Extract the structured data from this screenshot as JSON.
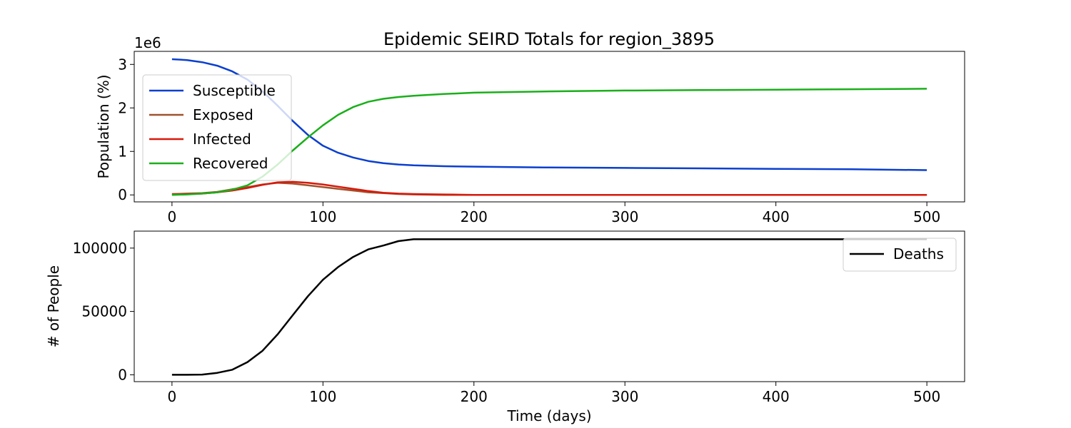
{
  "figure": {
    "title": "Epidemic SEIRD Totals for region_3895"
  },
  "chart_data": [
    {
      "type": "line",
      "title": "Epidemic SEIRD Totals for region_3895",
      "xlabel": "",
      "ylabel": "Population (%)",
      "y_offset_label": "1e6",
      "xlim": [
        -25,
        525
      ],
      "ylim": [
        -0.16,
        3.3
      ],
      "xticks": [
        0,
        100,
        200,
        300,
        400,
        500
      ],
      "yticks": [
        0,
        1,
        2,
        3
      ],
      "grid": false,
      "legend": "upper-left",
      "series": [
        {
          "name": "Susceptible",
          "color": "#0b3fcf",
          "x": [
            0,
            10,
            20,
            30,
            40,
            50,
            60,
            70,
            80,
            90,
            100,
            110,
            120,
            130,
            140,
            150,
            160,
            180,
            200,
            250,
            300,
            350,
            400,
            450,
            500
          ],
          "y": [
            3.12,
            3.1,
            3.05,
            2.97,
            2.84,
            2.65,
            2.38,
            2.05,
            1.7,
            1.38,
            1.13,
            0.97,
            0.86,
            0.78,
            0.73,
            0.7,
            0.68,
            0.66,
            0.65,
            0.63,
            0.62,
            0.61,
            0.6,
            0.59,
            0.57
          ]
        },
        {
          "name": "Exposed",
          "color": "#a0522d",
          "x": [
            0,
            10,
            20,
            30,
            40,
            50,
            60,
            70,
            80,
            90,
            100,
            110,
            120,
            130,
            140,
            150,
            160,
            180,
            200,
            250,
            300,
            350,
            400,
            450,
            500
          ],
          "y": [
            0.02,
            0.03,
            0.04,
            0.07,
            0.13,
            0.18,
            0.24,
            0.28,
            0.26,
            0.22,
            0.18,
            0.14,
            0.1,
            0.06,
            0.04,
            0.02,
            0.01,
            0.0,
            0.0,
            0.0,
            0.0,
            0.0,
            0.0,
            0.0,
            0.0
          ]
        },
        {
          "name": "Infected",
          "color": "#d7190b",
          "x": [
            0,
            10,
            20,
            30,
            40,
            50,
            60,
            70,
            80,
            90,
            100,
            110,
            120,
            130,
            140,
            150,
            160,
            180,
            200,
            250,
            300,
            350,
            400,
            450,
            500
          ],
          "y": [
            0.01,
            0.02,
            0.03,
            0.06,
            0.1,
            0.16,
            0.23,
            0.29,
            0.3,
            0.28,
            0.24,
            0.19,
            0.14,
            0.09,
            0.05,
            0.03,
            0.02,
            0.01,
            0.0,
            0.0,
            0.0,
            0.0,
            0.0,
            0.0,
            0.0
          ]
        },
        {
          "name": "Recovered",
          "color": "#1aaf1a",
          "x": [
            0,
            10,
            20,
            30,
            40,
            50,
            60,
            70,
            80,
            90,
            100,
            110,
            120,
            130,
            140,
            150,
            160,
            180,
            200,
            250,
            300,
            350,
            400,
            450,
            500
          ],
          "y": [
            0.0,
            0.01,
            0.03,
            0.06,
            0.12,
            0.22,
            0.42,
            0.7,
            1.02,
            1.32,
            1.6,
            1.84,
            2.02,
            2.14,
            2.21,
            2.25,
            2.28,
            2.32,
            2.35,
            2.38,
            2.4,
            2.41,
            2.42,
            2.43,
            2.44
          ]
        }
      ]
    },
    {
      "type": "line",
      "title": "",
      "xlabel": "Time (days)",
      "ylabel": "# of People",
      "xlim": [
        -25,
        525
      ],
      "ylim": [
        -5400,
        113400
      ],
      "xticks": [
        0,
        100,
        200,
        300,
        400,
        500
      ],
      "yticks": [
        0,
        50000,
        100000
      ],
      "grid": false,
      "legend": "upper-right",
      "series": [
        {
          "name": "Deaths",
          "color": "#000000",
          "x": [
            0,
            10,
            20,
            30,
            40,
            50,
            60,
            70,
            80,
            90,
            100,
            110,
            120,
            130,
            140,
            150,
            160,
            200,
            300,
            400,
            500
          ],
          "y": [
            0,
            0,
            200,
            1500,
            4000,
            10000,
            19000,
            32000,
            47000,
            62000,
            75000,
            85000,
            93000,
            99000,
            102000,
            105500,
            107000,
            107000,
            107000,
            107000,
            107000
          ]
        }
      ]
    }
  ]
}
